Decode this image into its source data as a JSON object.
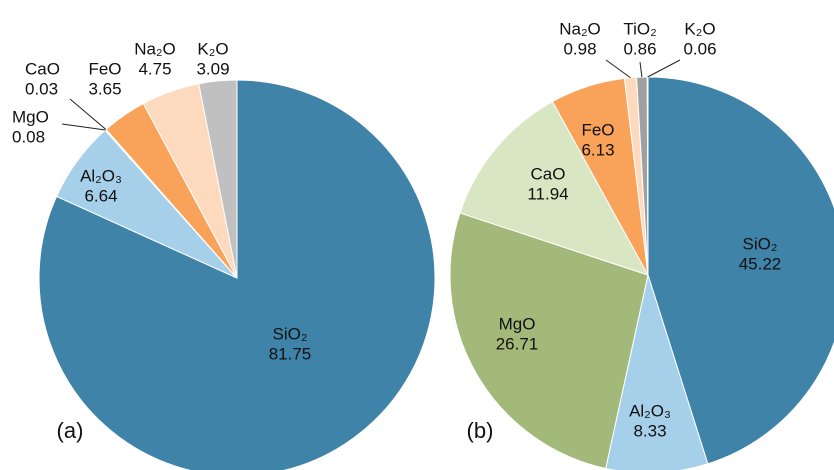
{
  "chart_data": [
    {
      "type": "pie",
      "panel_label": "(a)",
      "categories": [
        "SiO₂",
        "Al₂O₃",
        "MgO",
        "CaO",
        "FeO",
        "Na₂O",
        "K₂O"
      ],
      "values": [
        81.75,
        6.64,
        0.08,
        0.03,
        3.65,
        4.75,
        3.09
      ],
      "colors": [
        "#3f83a9",
        "#a6cfe9",
        "#a3b97a",
        "#d9e6c3",
        "#f9a25a",
        "#fdd9bd",
        "#c0c0c0"
      ]
    },
    {
      "type": "pie",
      "panel_label": "(b)",
      "categories": [
        "SiO₂",
        "Al₂O₃",
        "MgO",
        "CaO",
        "FeO",
        "Na₂O",
        "TiO₂",
        "K₂O"
      ],
      "values": [
        45.22,
        8.33,
        26.71,
        11.94,
        6.13,
        0.98,
        0.86,
        0.06
      ],
      "colors": [
        "#3f83a9",
        "#a6cfe9",
        "#a3b97a",
        "#d9e6c3",
        "#f9a25a",
        "#fdd9bd",
        "#a0a0a0",
        "#7a7a7a"
      ]
    }
  ]
}
